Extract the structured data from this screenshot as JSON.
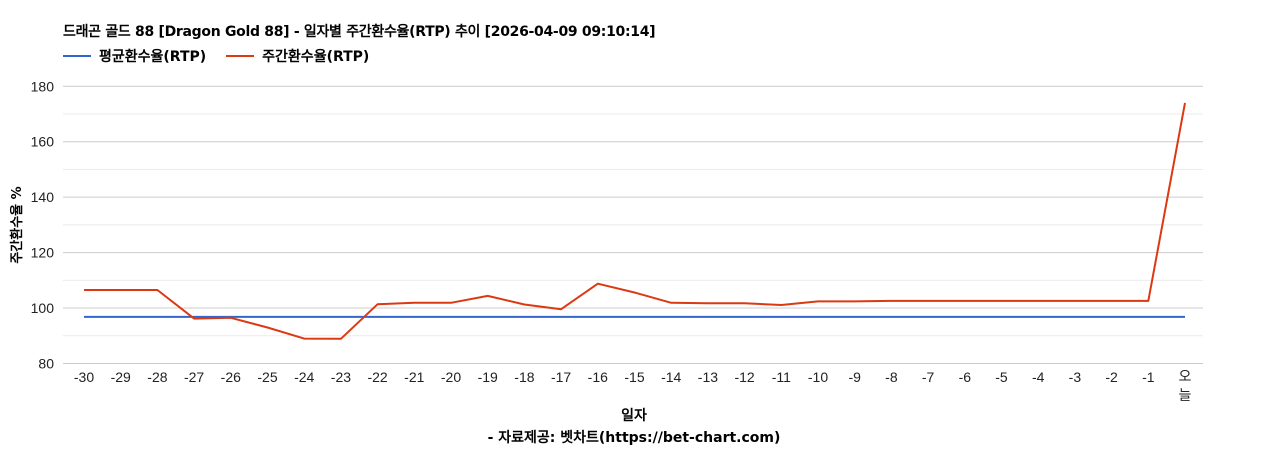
{
  "header": {
    "title": "드래곤 골드 88 [Dragon Gold 88] - 일자별 주간환수율(RTP) 추이 [2026-04-09 09:10:14]"
  },
  "legend": [
    {
      "label": "평균환수율(RTP)",
      "color": "#3366cc"
    },
    {
      "label": "주간환수율(RTP)",
      "color": "#dc3912"
    }
  ],
  "axes": {
    "ylabel": "주간환수율 %",
    "xlabel": "일자"
  },
  "footer": {
    "source": "- 자료제공: 벳차트(https://bet-chart.com)"
  },
  "chart_data": {
    "type": "line",
    "title": "드래곤 골드 88 [Dragon Gold 88] - 일자별 주간환수율(RTP) 추이 [2026-04-09 09:10:14]",
    "xlabel": "일자",
    "ylabel": "주간환수율 %",
    "ylim": [
      80,
      180
    ],
    "yticks": [
      80,
      100,
      120,
      140,
      160,
      180
    ],
    "grid": true,
    "legend_position": "top",
    "categories": [
      "-30",
      "-29",
      "-28",
      "-27",
      "-26",
      "-25",
      "-24",
      "-23",
      "-22",
      "-21",
      "-20",
      "-19",
      "-18",
      "-17",
      "-16",
      "-15",
      "-14",
      "-13",
      "-12",
      "-11",
      "-10",
      "-9",
      "-8",
      "-7",
      "-6",
      "-5",
      "-4",
      "-3",
      "-2",
      "-1",
      "오늘"
    ],
    "series": [
      {
        "name": "평균환수율(RTP)",
        "color": "#3366cc",
        "values": [
          96.8,
          96.8,
          96.8,
          96.8,
          96.8,
          96.8,
          96.8,
          96.8,
          96.8,
          96.8,
          96.8,
          96.8,
          96.8,
          96.8,
          96.8,
          96.8,
          96.8,
          96.8,
          96.8,
          96.8,
          96.8,
          96.8,
          96.8,
          96.8,
          96.8,
          96.8,
          96.8,
          96.8,
          96.8,
          96.8,
          96.8
        ]
      },
      {
        "name": "주간환수율(RTP)",
        "color": "#dc3912",
        "values": [
          106.5,
          106.5,
          106.5,
          96.2,
          96.5,
          93.0,
          89.0,
          88.9,
          101.4,
          101.9,
          101.9,
          104.4,
          101.3,
          99.6,
          108.8,
          105.6,
          101.9,
          101.7,
          101.7,
          101.1,
          102.4,
          102.4,
          102.6,
          102.6,
          102.6,
          102.6,
          102.6,
          102.6,
          102.6,
          102.6,
          174.0
        ]
      }
    ]
  }
}
